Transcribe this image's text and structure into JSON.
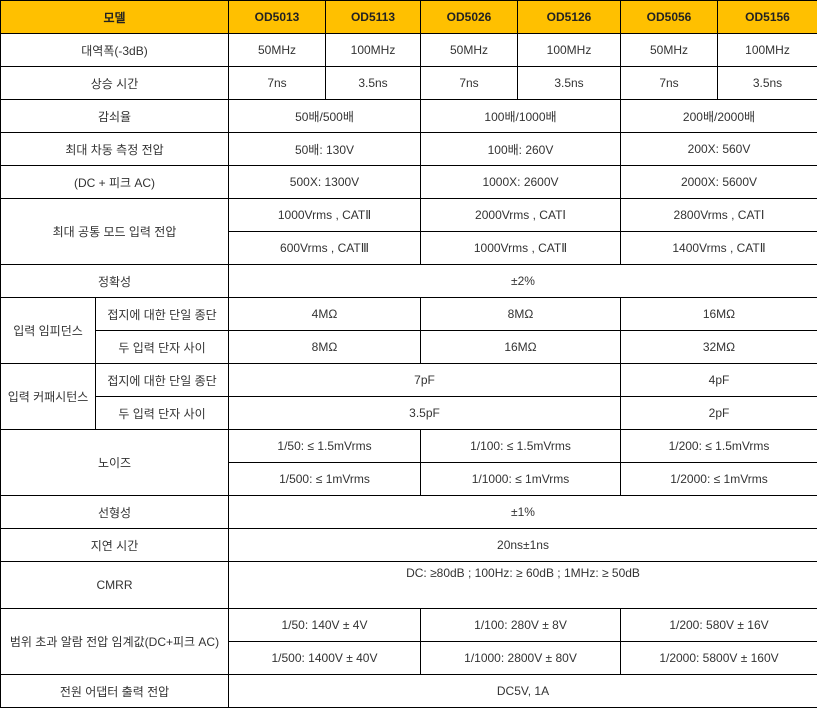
{
  "header": {
    "label": "모델",
    "models": [
      "OD5013",
      "OD5113",
      "OD5026",
      "OD5126",
      "OD5056",
      "OD5156"
    ]
  },
  "colors": {
    "header_bg": "#ffc000",
    "border": "#000000"
  },
  "rows": [
    [
      {
        "t": "대역폭(-3dB)",
        "c": 2
      },
      {
        "t": "50MHz"
      },
      {
        "t": "100MHz"
      },
      {
        "t": "50MHz"
      },
      {
        "t": "100MHz"
      },
      {
        "t": "50MHz"
      },
      {
        "t": "100MHz"
      }
    ],
    [
      {
        "t": "상승 시간",
        "c": 2
      },
      {
        "t": "7ns"
      },
      {
        "t": "3.5ns"
      },
      {
        "t": "7ns"
      },
      {
        "t": "3.5ns"
      },
      {
        "t": "7ns"
      },
      {
        "t": "3.5ns"
      }
    ],
    [
      {
        "t": "감쇠율",
        "c": 2
      },
      {
        "t": "50배/500배",
        "c": 2
      },
      {
        "t": "100배/1000배",
        "c": 2
      },
      {
        "t": "200배/2000배",
        "c": 2
      }
    ],
    [
      {
        "t": "최대 차동 측정 전압",
        "c": 2
      },
      {
        "t": "50배: 130V",
        "c": 2
      },
      {
        "t": "100배: 260V",
        "c": 2
      },
      {
        "t": "200X: 560V",
        "c": 2
      }
    ],
    [
      {
        "t": "(DC + 피크 AC)",
        "c": 2
      },
      {
        "t": "500X: 1300V",
        "c": 2
      },
      {
        "t": "1000X: 2600V",
        "c": 2
      },
      {
        "t": "2000X: 5600V",
        "c": 2
      }
    ],
    [
      {
        "t": "최대 공통 모드 입력 전압",
        "c": 2,
        "r": 2
      },
      {
        "t": "1000Vrms , CATⅡ",
        "c": 2
      },
      {
        "t": "2000Vrms , CATⅠ",
        "c": 2
      },
      {
        "t": "2800Vrms , CATⅠ",
        "c": 2
      }
    ],
    [
      {
        "t": "600Vrms , CATⅢ",
        "c": 2
      },
      {
        "t": "1000Vrms , CATⅡ",
        "c": 2
      },
      {
        "t": "1400Vrms , CATⅡ",
        "c": 2
      }
    ],
    [
      {
        "t": "정확성",
        "c": 2
      },
      {
        "t": "±2%",
        "c": 6
      }
    ],
    [
      {
        "t": "입력 임피던스",
        "r": 2
      },
      {
        "t": "접지에 대한 단일 종단"
      },
      {
        "t": "4MΩ",
        "c": 2
      },
      {
        "t": "8MΩ",
        "c": 2
      },
      {
        "t": "16MΩ",
        "c": 2
      }
    ],
    [
      {
        "t": "두 입력 단자 사이"
      },
      {
        "t": "8MΩ",
        "c": 2
      },
      {
        "t": "16MΩ",
        "c": 2
      },
      {
        "t": "32MΩ",
        "c": 2
      }
    ],
    [
      {
        "t": "입력 커패시턴스",
        "r": 2
      },
      {
        "t": "접지에 대한 단일 종단"
      },
      {
        "t": "7pF",
        "c": 4
      },
      {
        "t": "4pF",
        "c": 2
      }
    ],
    [
      {
        "t": "두 입력 단자 사이"
      },
      {
        "t": "3.5pF",
        "c": 4
      },
      {
        "t": "2pF",
        "c": 2
      }
    ],
    [
      {
        "t": "노이즈",
        "c": 2,
        "r": 2
      },
      {
        "t": "1/50: ≤ 1.5mVrms",
        "c": 2
      },
      {
        "t": "1/100: ≤ 1.5mVrms",
        "c": 2
      },
      {
        "t": "1/200: ≤ 1.5mVrms",
        "c": 2
      }
    ],
    [
      {
        "t": "1/500: ≤ 1mVrms",
        "c": 2
      },
      {
        "t": "1/1000: ≤ 1mVrms",
        "c": 2
      },
      {
        "t": "1/2000: ≤ 1mVrms",
        "c": 2
      }
    ],
    [
      {
        "t": "선형성",
        "c": 2
      },
      {
        "t": "±1%",
        "c": 6
      }
    ],
    [
      {
        "t": "지연 시간",
        "c": 2
      },
      {
        "t": "20ns±1ns",
        "c": 6
      }
    ],
    [
      {
        "t": "CMRR",
        "c": 2
      },
      {
        "t": "DC: ≥80dB ; 100Hz: ≥ 60dB ; 1MHz: ≥ 50dB",
        "c": 6,
        "top": true
      }
    ],
    [
      {
        "t": "범위 초과 알람 전압 임계값(DC+피크 AC)",
        "c": 2,
        "r": 2
      },
      {
        "t": "1/50: 140V ± 4V",
        "c": 2
      },
      {
        "t": "1/100: 280V ± 8V",
        "c": 2
      },
      {
        "t": "1/200: 580V ± 16V",
        "c": 2
      }
    ],
    [
      {
        "t": "1/500: 1400V ± 40V",
        "c": 2
      },
      {
        "t": "1/1000: 2800V ± 80V",
        "c": 2
      },
      {
        "t": "1/2000: 5800V ± 160V",
        "c": 2
      }
    ],
    [
      {
        "t": "전원 어댑터 출력 전압",
        "c": 2
      },
      {
        "t": "DC5V, 1A",
        "c": 6
      }
    ]
  ]
}
